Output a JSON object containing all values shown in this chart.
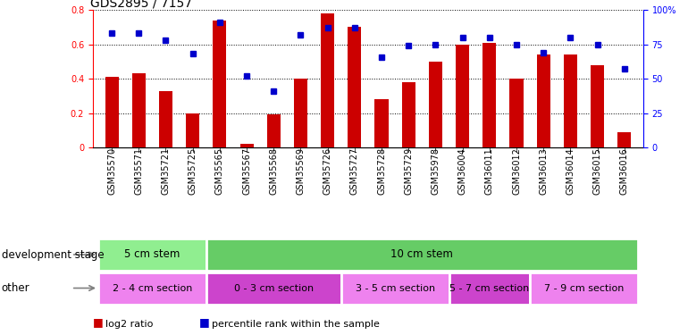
{
  "title": "GDS2895 / 7157",
  "categories": [
    "GSM35570",
    "GSM35571",
    "GSM35721",
    "GSM35725",
    "GSM35565",
    "GSM35567",
    "GSM35568",
    "GSM35569",
    "GSM35726",
    "GSM35727",
    "GSM35728",
    "GSM35729",
    "GSM35978",
    "GSM36004",
    "GSM36011",
    "GSM36012",
    "GSM36013",
    "GSM36014",
    "GSM36015",
    "GSM36016"
  ],
  "log2_ratio": [
    0.41,
    0.43,
    0.33,
    0.2,
    0.74,
    0.02,
    0.19,
    0.4,
    0.78,
    0.7,
    0.28,
    0.38,
    0.5,
    0.6,
    0.61,
    0.4,
    0.54,
    0.54,
    0.48,
    0.09
  ],
  "percentile": [
    0.83,
    0.83,
    0.78,
    0.68,
    0.91,
    0.52,
    0.41,
    0.82,
    0.87,
    0.87,
    0.66,
    0.74,
    0.75,
    0.8,
    0.8,
    0.75,
    0.69,
    0.8,
    0.75,
    0.57
  ],
  "bar_color": "#cc0000",
  "dot_color": "#0000cc",
  "ylim_left": [
    0,
    0.8
  ],
  "ylim_right": [
    0,
    1.0
  ],
  "yticks_left": [
    0,
    0.2,
    0.4,
    0.6,
    0.8
  ],
  "ytick_labels_left": [
    "0",
    "0.2",
    "0.4",
    "0.6",
    "0.8"
  ],
  "yticks_right": [
    0,
    0.25,
    0.5,
    0.75,
    1.0
  ],
  "ytick_labels_right": [
    "0",
    "25",
    "50",
    "75",
    "100%"
  ],
  "dev_stage_groups": [
    {
      "label": "5 cm stem",
      "start": 0,
      "end": 4,
      "color": "#90ee90"
    },
    {
      "label": "10 cm stem",
      "start": 4,
      "end": 20,
      "color": "#66cc66"
    }
  ],
  "other_groups": [
    {
      "label": "2 - 4 cm section",
      "start": 0,
      "end": 4,
      "color": "#ee82ee"
    },
    {
      "label": "0 - 3 cm section",
      "start": 4,
      "end": 9,
      "color": "#cc44cc"
    },
    {
      "label": "3 - 5 cm section",
      "start": 9,
      "end": 13,
      "color": "#ee82ee"
    },
    {
      "label": "5 - 7 cm section",
      "start": 13,
      "end": 16,
      "color": "#cc44cc"
    },
    {
      "label": "7 - 9 cm section",
      "start": 16,
      "end": 20,
      "color": "#ee82ee"
    }
  ],
  "dev_label": "development stage",
  "other_label": "other",
  "title_fontsize": 10,
  "tick_fontsize": 7,
  "annotation_fontsize": 8.5,
  "legend_fontsize": 8
}
